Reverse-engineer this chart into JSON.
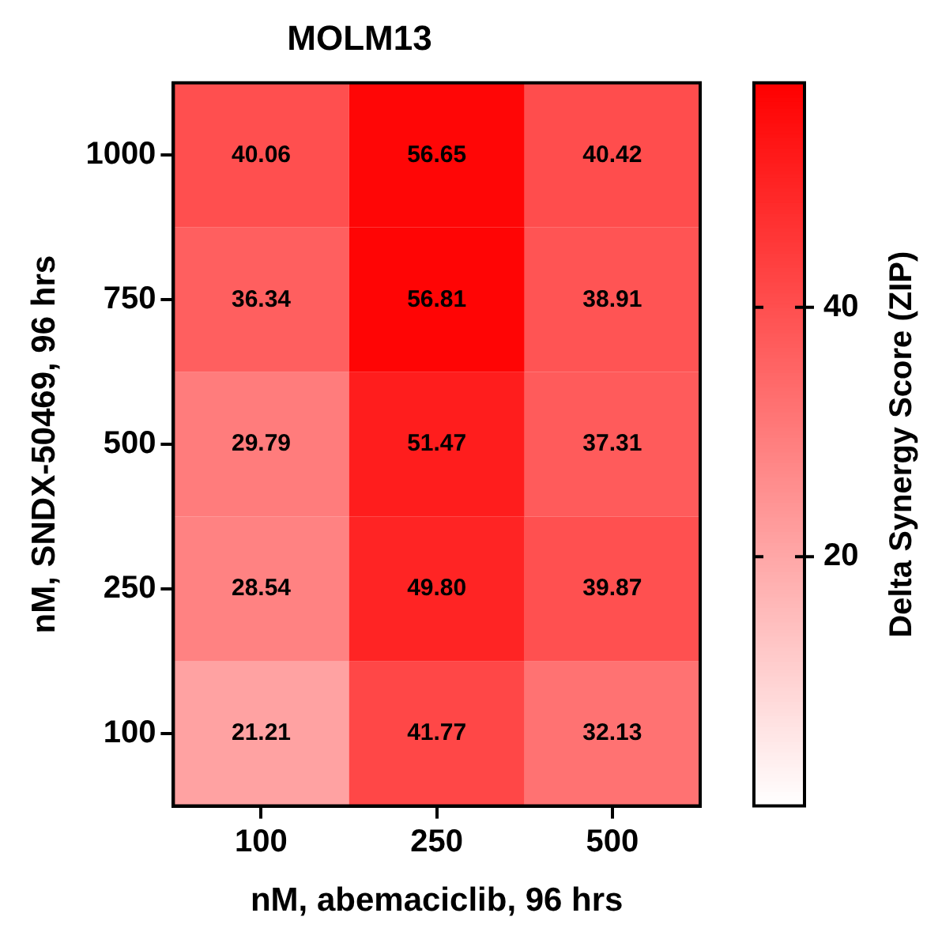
{
  "chart_data": {
    "type": "heatmap",
    "title": "MOLM13",
    "xlabel": "nM, abemaciclib, 96 hrs",
    "ylabel": "nM, SNDX-50469, 96 hrs",
    "clabel": "Delta Synergy Score (ZIP)",
    "categories": [
      "100",
      "250",
      "500"
    ],
    "y_categories": [
      "1000",
      "750",
      "500",
      "250",
      "100"
    ],
    "cells": [
      [
        40.06,
        56.65,
        40.42
      ],
      [
        36.34,
        56.81,
        38.91
      ],
      [
        29.79,
        51.47,
        37.31
      ],
      [
        28.54,
        49.8,
        39.87
      ],
      [
        21.21,
        41.77,
        32.13
      ]
    ],
    "cell_labels": [
      [
        "40.06",
        "56.65",
        "40.42"
      ],
      [
        "36.34",
        "56.81",
        "38.91"
      ],
      [
        "29.79",
        "51.47",
        "37.31"
      ],
      [
        "28.54",
        "49.80",
        "39.87"
      ],
      [
        "21.21",
        "41.77",
        "32.13"
      ]
    ],
    "clim": [
      0,
      58
    ],
    "cticks": [
      20,
      40
    ]
  }
}
